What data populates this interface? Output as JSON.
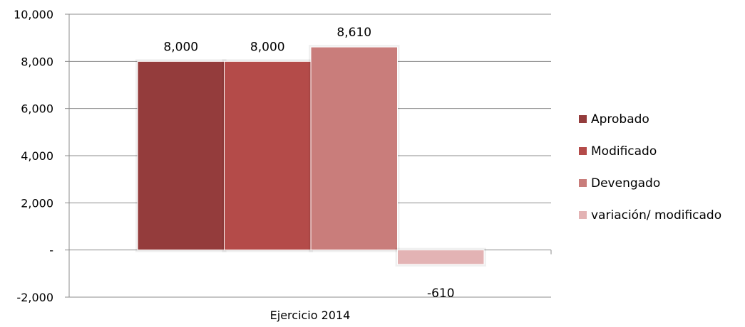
{
  "chart_data": {
    "type": "bar",
    "categories": [
      "Ejercicio 2014"
    ],
    "series": [
      {
        "name": "Aprobado",
        "values": [
          8000
        ],
        "label": "8,000",
        "color": "#943c3c"
      },
      {
        "name": "Modificado",
        "values": [
          8000
        ],
        "label": "8,000",
        "color": "#b44b49"
      },
      {
        "name": "Devengado",
        "values": [
          8610
        ],
        "label": "8,610",
        "color": "#c97d7b"
      },
      {
        "name": "variación/ modificado",
        "values": [
          -610
        ],
        "label": "-610",
        "color": "#e3b3b4"
      }
    ],
    "title": "",
    "xlabel": "",
    "ylabel": "",
    "ylim": [
      -2000,
      10000
    ],
    "yticks": [
      {
        "value": 10000,
        "label": "10,000"
      },
      {
        "value": 8000,
        "label": "8,000"
      },
      {
        "value": 6000,
        "label": "6,000"
      },
      {
        "value": 4000,
        "label": "4,000"
      },
      {
        "value": 2000,
        "label": "2,000"
      },
      {
        "value": 0,
        "label": "-"
      },
      {
        "value": -2000,
        "label": "-2,000"
      }
    ],
    "grid": true,
    "legend": "right"
  }
}
